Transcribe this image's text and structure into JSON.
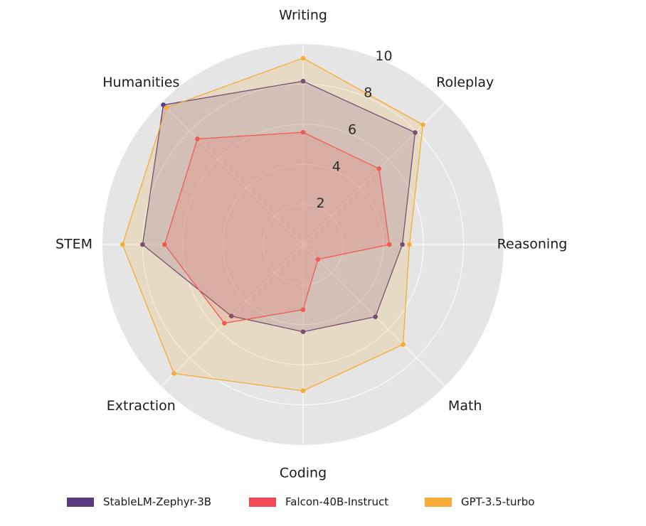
{
  "chart_data": {
    "type": "radar",
    "categories": [
      "Writing",
      "Roleplay",
      "Reasoning",
      "Math",
      "Coding",
      "Extraction",
      "STEM",
      "Humanities"
    ],
    "rlim": [
      0,
      10
    ],
    "rticks": [
      2,
      4,
      6,
      8,
      10
    ],
    "rtick_labels": [
      "2",
      "4",
      "6",
      "8",
      "10"
    ],
    "grid": true,
    "legend_position": "bottom",
    "series": [
      {
        "name": "StableLM-Zephyr-3B",
        "color": "#5a3a7e",
        "values": [
          8.15,
          7.9,
          4.95,
          5.1,
          4.35,
          5.05,
          8.0,
          9.85
        ]
      },
      {
        "name": "Falcon-40B-Instruct",
        "color": "#f0495a",
        "values": [
          5.6,
          5.35,
          4.3,
          1.05,
          3.25,
          5.55,
          6.9,
          7.45
        ]
      },
      {
        "name": "GPT-3.5-turbo",
        "color": "#f5ab35",
        "values": [
          9.3,
          8.45,
          5.3,
          7.05,
          7.3,
          9.1,
          9.0,
          9.65
        ]
      }
    ]
  }
}
